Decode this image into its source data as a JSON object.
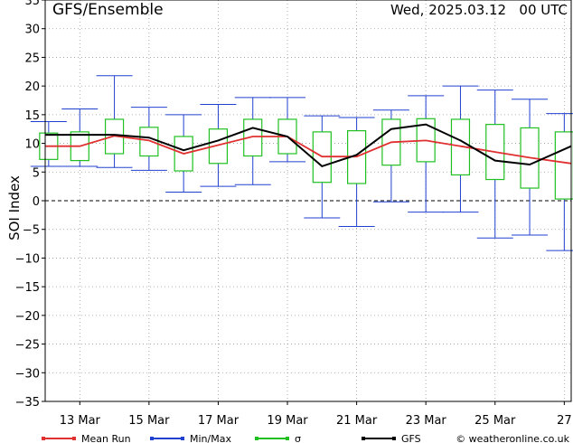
{
  "header": {
    "title": "GFS/Ensemble",
    "datetime": "Wed, 2025.03.12   00 UTC"
  },
  "footer": {
    "copyright": "© weatheronline.co.uk"
  },
  "colors": {
    "mean": "#e03030",
    "minmax": "#2040d0",
    "sigma": "#20c020",
    "gfs": "#000000",
    "grid": "#999999"
  },
  "chart_data": {
    "type": "line",
    "title": "GFS/Ensemble",
    "ylabel": "SOI Index",
    "xlabel": "",
    "ylim": [
      -35,
      35
    ],
    "yticks": [
      -35,
      -30,
      -25,
      -20,
      -15,
      -10,
      -5,
      0,
      5,
      10,
      15,
      20,
      25,
      30,
      35
    ],
    "grid": true,
    "legend_position": "bottom",
    "x_tick_labels": [
      {
        "day": 13,
        "label": "13 Mar"
      },
      {
        "day": 15,
        "label": "15 Mar"
      },
      {
        "day": 17,
        "label": "17 Mar"
      },
      {
        "day": 19,
        "label": "19 Mar"
      },
      {
        "day": 21,
        "label": "21 Mar"
      },
      {
        "day": 23,
        "label": "23 Mar"
      },
      {
        "day": 25,
        "label": "25 Mar"
      },
      {
        "day": 27,
        "label": "27"
      }
    ],
    "x_range_days": [
      12,
      27.2
    ],
    "legend": [
      "Mean Run",
      "Min/Max",
      "σ",
      "GFS"
    ],
    "series": [
      {
        "name": "Mean Run",
        "x": [
          12,
          13,
          14,
          15,
          16,
          17,
          18,
          19,
          20,
          21,
          22,
          23,
          24,
          25,
          26,
          27.2
        ],
        "values": [
          9.5,
          9.5,
          11.3,
          10.5,
          8.2,
          9.7,
          11.2,
          11.2,
          7.7,
          7.7,
          10.2,
          10.5,
          9.5,
          8.5,
          7.5,
          6.5
        ]
      },
      {
        "name": "GFS",
        "x": [
          12,
          13,
          14,
          15,
          16,
          17,
          18,
          19,
          20,
          21,
          22,
          23,
          24,
          25,
          26,
          27.2
        ],
        "values": [
          11.5,
          11.5,
          11.5,
          11.0,
          8.8,
          10.5,
          12.7,
          11.2,
          6.0,
          8.0,
          12.5,
          13.3,
          10.5,
          7.0,
          6.3,
          9.5
        ]
      }
    ],
    "ranges": [
      {
        "x": 12.1,
        "min": 6.0,
        "max": 13.8,
        "sigma_low": 7.2,
        "sigma_high": 11.8
      },
      {
        "x": 13.0,
        "min": 6.0,
        "max": 16.0,
        "sigma_low": 7.0,
        "sigma_high": 12.0
      },
      {
        "x": 14.0,
        "min": 5.8,
        "max": 21.8,
        "sigma_low": 8.2,
        "sigma_high": 14.2
      },
      {
        "x": 15.0,
        "min": 5.3,
        "max": 16.3,
        "sigma_low": 7.8,
        "sigma_high": 12.8
      },
      {
        "x": 16.0,
        "min": 1.5,
        "max": 15.0,
        "sigma_low": 5.2,
        "sigma_high": 11.2
      },
      {
        "x": 17.0,
        "min": 2.5,
        "max": 16.8,
        "sigma_low": 6.5,
        "sigma_high": 12.5
      },
      {
        "x": 18.0,
        "min": 2.8,
        "max": 18.0,
        "sigma_low": 7.8,
        "sigma_high": 14.2
      },
      {
        "x": 19.0,
        "min": 6.8,
        "max": 18.0,
        "sigma_low": 8.2,
        "sigma_high": 14.2
      },
      {
        "x": 20.0,
        "min": -3.0,
        "max": 14.8,
        "sigma_low": 3.2,
        "sigma_high": 12.0
      },
      {
        "x": 21.0,
        "min": -4.5,
        "max": 14.5,
        "sigma_low": 3.0,
        "sigma_high": 12.2
      },
      {
        "x": 22.0,
        "min": -0.2,
        "max": 15.8,
        "sigma_low": 6.2,
        "sigma_high": 14.2
      },
      {
        "x": 23.0,
        "min": -2.0,
        "max": 18.3,
        "sigma_low": 6.8,
        "sigma_high": 14.3
      },
      {
        "x": 24.0,
        "min": -2.0,
        "max": 20.0,
        "sigma_low": 4.5,
        "sigma_high": 14.2
      },
      {
        "x": 25.0,
        "min": -6.5,
        "max": 19.3,
        "sigma_low": 3.7,
        "sigma_high": 13.3
      },
      {
        "x": 26.0,
        "min": -6.0,
        "max": 17.7,
        "sigma_low": 2.2,
        "sigma_high": 12.7
      },
      {
        "x": 27.0,
        "min": -8.7,
        "max": 15.2,
        "sigma_low": 0.3,
        "sigma_high": 12.0
      }
    ]
  }
}
